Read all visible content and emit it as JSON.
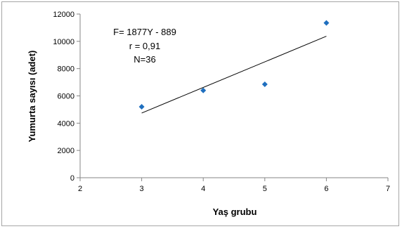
{
  "chart_data": {
    "type": "scatter",
    "title": "",
    "xlabel": "Yaş grubu",
    "ylabel": "Yumurta sayısı (adet)",
    "xlim": [
      2,
      7
    ],
    "ylim": [
      0,
      12000
    ],
    "x_ticks": [
      "2",
      "3",
      "4",
      "5",
      "6",
      "7"
    ],
    "y_ticks": [
      "0",
      "2000",
      "4000",
      "6000",
      "8000",
      "10000",
      "12000"
    ],
    "grid": false,
    "legend": false,
    "series": [
      {
        "x": [
          3,
          4,
          5,
          6
        ],
        "y": [
          5200,
          6400,
          6850,
          11350
        ],
        "color": "#1f6fbf",
        "marker": "diamond"
      }
    ],
    "trendline": {
      "x": [
        3,
        6
      ],
      "y": [
        4742,
        10373
      ],
      "color": "#000000"
    },
    "annotations": [
      "F= 1877Y  - 889",
      "r = 0,91",
      "N=36"
    ]
  }
}
